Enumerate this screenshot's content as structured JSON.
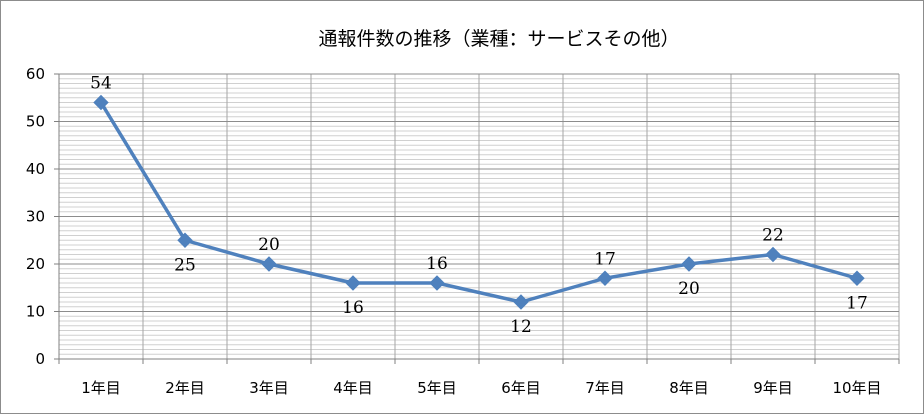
{
  "chart_data": {
    "type": "line",
    "title": "通報件数の推移（業種：サービスその他）",
    "categories": [
      "1年目",
      "2年目",
      "3年目",
      "4年目",
      "5年目",
      "6年目",
      "7年目",
      "8年目",
      "9年目",
      "10年目"
    ],
    "series": [
      {
        "values": [
          54,
          25,
          20,
          16,
          16,
          12,
          17,
          20,
          22,
          17
        ],
        "data_labels": [
          "54",
          "25",
          "20",
          "16",
          "16",
          "12",
          "17",
          "20",
          "22",
          "17"
        ],
        "data_label_positions": [
          "above",
          "below",
          "above",
          "below",
          "above",
          "below",
          "above",
          "below",
          "above",
          "below"
        ],
        "color": "#4f81bd",
        "marker": "diamond"
      }
    ],
    "ylim": [
      0,
      60
    ],
    "y_major_step": 10,
    "y_ticks": [
      "0",
      "10",
      "20",
      "30",
      "40",
      "50",
      "60"
    ],
    "y_minor_step": 1,
    "grid": true,
    "x_gridlines": true,
    "legend": "none",
    "xlabel": "",
    "ylabel": ""
  }
}
